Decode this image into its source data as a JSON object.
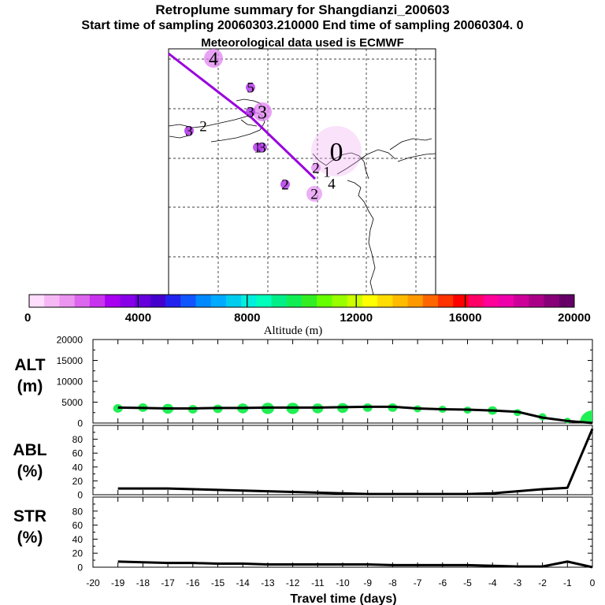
{
  "header": {
    "title": "Retroplume summary for Shangdianzi_200603",
    "sampling": "Start time of sampling 20060303.210000     End time of sampling 20060304.     0",
    "met": "Meteorological data used is ECMWF"
  },
  "colors": {
    "track": "#9900dd",
    "alt_marker": "#22ee55",
    "line": "#000000",
    "colorbar": [
      "#ffddff",
      "#f5b8f5",
      "#eb94f0",
      "#dd66ee",
      "#c833ee",
      "#a800f0",
      "#8800e8",
      "#6600dd",
      "#4400cc",
      "#2222ee",
      "#1155ff",
      "#0088ff",
      "#00aaff",
      "#00ccee",
      "#00eedd",
      "#00ffbb",
      "#00ee88",
      "#11ee55",
      "#33ee22",
      "#66ff00",
      "#99ff00",
      "#ccff00",
      "#ffff00",
      "#ffdd00",
      "#ffbb00",
      "#ff9900",
      "#ff6600",
      "#ff3300",
      "#ff0000",
      "#ff0066",
      "#ff0099",
      "#ee00aa",
      "#cc0099",
      "#aa0088",
      "#880077",
      "#660066"
    ]
  },
  "map": {
    "markers": [
      {
        "label": "4",
        "size": "large",
        "intensity": 0.55
      },
      {
        "label": "5",
        "size": "small",
        "intensity": 0.7
      },
      {
        "label": "3",
        "size": "large",
        "intensity": 0.6
      },
      {
        "label": "3",
        "size": "small",
        "intensity": 0.75
      },
      {
        "label": "3",
        "size": "small",
        "intensity": 0.8
      },
      {
        "label": "2",
        "size": "plain",
        "intensity": 0
      },
      {
        "label": "1",
        "size": "small",
        "intensity": 0.7
      },
      {
        "label": "3",
        "size": "small",
        "intensity": 0.7
      },
      {
        "label": "2",
        "size": "small",
        "intensity": 0.7
      },
      {
        "label": "0",
        "size": "huge",
        "intensity": 0.15
      },
      {
        "label": "2",
        "size": "small",
        "intensity": 0.5
      },
      {
        "label": "1",
        "size": "plain",
        "intensity": 0
      },
      {
        "label": "4",
        "size": "plain",
        "intensity": 0
      },
      {
        "label": "2",
        "size": "medium",
        "intensity": 0.35
      }
    ]
  },
  "colorbar": {
    "tick_labels": [
      "0",
      "4000",
      "8000",
      "12000",
      "16000",
      "20000"
    ],
    "label": "Altitude (m)"
  },
  "chart_data": [
    {
      "type": "line",
      "panel": "ALT",
      "ylabel": "ALT",
      "yunit": "(m)",
      "ylim": [
        0,
        20000
      ],
      "yticks": [
        "0",
        "5000",
        "10000",
        "15000",
        "20000"
      ],
      "x": [
        -19,
        -18,
        -17,
        -16,
        -15,
        -14,
        -13,
        -12,
        -11,
        -10,
        -9,
        -8,
        -7,
        -6,
        -5,
        -4,
        -3,
        -2,
        -1,
        0
      ],
      "values": [
        3700,
        3600,
        3500,
        3500,
        3600,
        3600,
        3700,
        3700,
        3700,
        3800,
        3900,
        3900,
        3500,
        3300,
        3200,
        3000,
        2700,
        1300,
        500,
        0
      ],
      "marker_values": [
        3500,
        3700,
        3400,
        3300,
        3400,
        3500,
        3500,
        3500,
        3500,
        3600,
        3700,
        3700,
        3400,
        3300,
        3100,
        3000,
        2500,
        1500,
        600,
        1200
      ],
      "marker_sizes": [
        6,
        6,
        7,
        6,
        6,
        7,
        8,
        8,
        7,
        7,
        6,
        6,
        5,
        5,
        5,
        6,
        5,
        5,
        4,
        10
      ]
    },
    {
      "type": "line",
      "panel": "ABL",
      "ylabel": "ABL",
      "yunit": "(%)",
      "ylim": [
        0,
        100
      ],
      "yticks": [
        "0",
        "20",
        "40",
        "60",
        "80"
      ],
      "x": [
        -19,
        -18,
        -17,
        -16,
        -15,
        -14,
        -13,
        -12,
        -11,
        -10,
        -9,
        -8,
        -7,
        -6,
        -5,
        -4,
        -3,
        -2,
        -1,
        0
      ],
      "values": [
        9,
        9,
        9,
        8,
        7,
        6,
        5,
        4,
        3,
        2,
        1,
        1,
        1,
        1,
        1,
        2,
        5,
        8,
        10,
        95
      ]
    },
    {
      "type": "line",
      "panel": "STR",
      "ylabel": "STR",
      "yunit": "(%)",
      "ylim": [
        0,
        100
      ],
      "yticks": [
        "0",
        "20",
        "40",
        "60",
        "80"
      ],
      "x": [
        -19,
        -18,
        -17,
        -16,
        -15,
        -14,
        -13,
        -12,
        -11,
        -10,
        -9,
        -8,
        -7,
        -6,
        -5,
        -4,
        -3,
        -2,
        -1,
        0
      ],
      "values": [
        8,
        7,
        6,
        6,
        5,
        5,
        4,
        4,
        4,
        4,
        4,
        3,
        3,
        3,
        3,
        2,
        1,
        1,
        8,
        0
      ],
      "xlabel": "Travel time (days)",
      "xticks": [
        "-20",
        "-19",
        "-18",
        "-17",
        "-16",
        "-15",
        "-14",
        "-13",
        "-12",
        "-11",
        "-10",
        "-9",
        "-8",
        "-7",
        "-6",
        "-5",
        "-4",
        "-3",
        "-2",
        "-1",
        "0"
      ]
    }
  ]
}
